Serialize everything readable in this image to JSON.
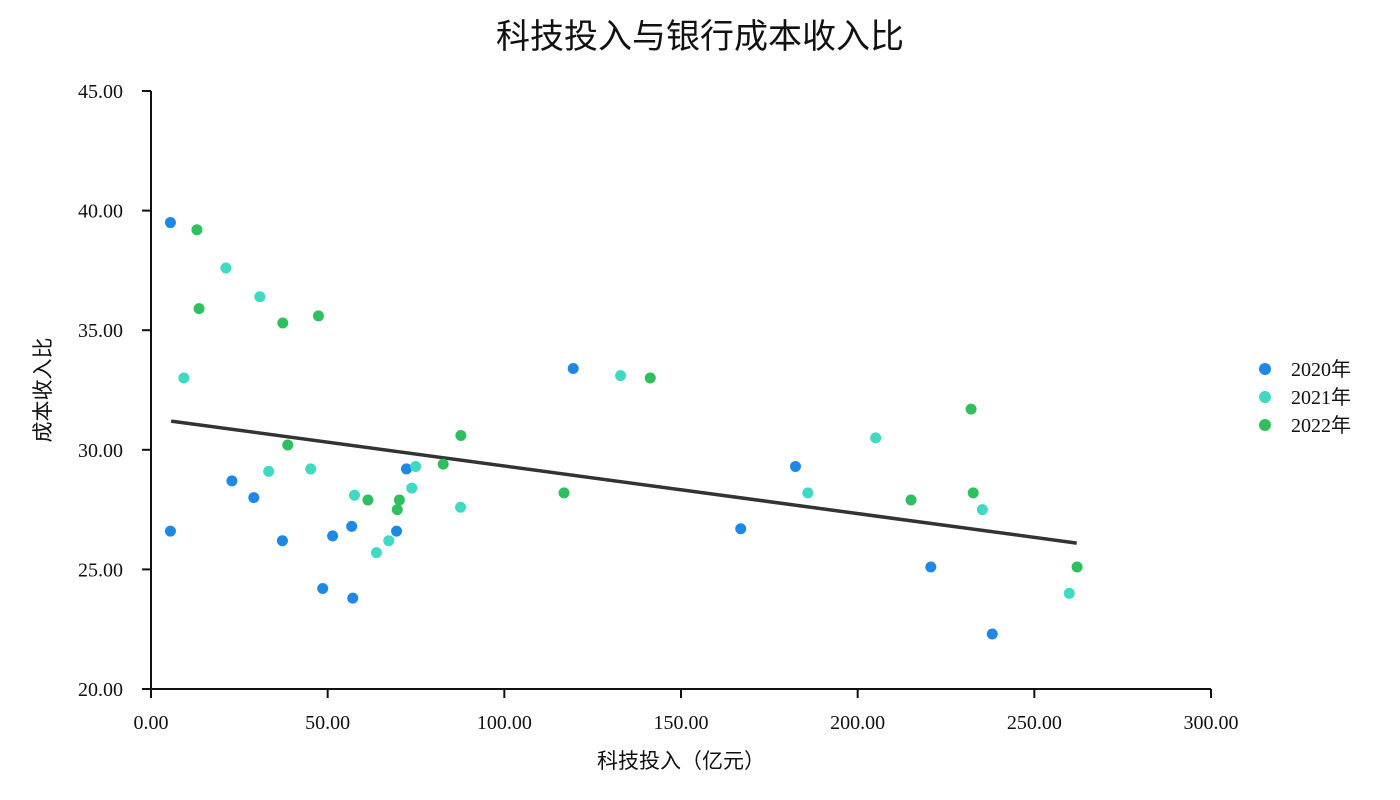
{
  "chart_data": {
    "type": "scatter",
    "title": "科技投入与银行成本收入比",
    "xlabel": "科技投入（亿元）",
    "ylabel": "成本收入比",
    "xlim": [
      0,
      300
    ],
    "ylim": [
      20,
      45
    ],
    "x_ticks": [
      "0.00",
      "50.00",
      "100.00",
      "150.00",
      "200.00",
      "250.00",
      "300.00"
    ],
    "y_ticks": [
      "20.00",
      "25.00",
      "30.00",
      "35.00",
      "40.00",
      "45.00"
    ],
    "x_tick_values": [
      0,
      50,
      100,
      150,
      200,
      250,
      300
    ],
    "y_tick_values": [
      20,
      25,
      30,
      35,
      40,
      45
    ],
    "grid": false,
    "legend_position": "right",
    "series": [
      {
        "name": "2020年",
        "color": "#1f88e5",
        "points": [
          [
            5.5,
            39.5
          ],
          [
            5.5,
            26.6
          ],
          [
            22.9,
            28.7
          ],
          [
            29.1,
            28.0
          ],
          [
            37.2,
            26.2
          ],
          [
            48.6,
            24.2
          ],
          [
            51.4,
            26.4
          ],
          [
            56.8,
            26.8
          ],
          [
            57.1,
            23.8
          ],
          [
            69.5,
            26.6
          ],
          [
            72.3,
            29.2
          ],
          [
            119.5,
            33.4
          ],
          [
            166.9,
            26.7
          ],
          [
            182.4,
            29.3
          ],
          [
            220.7,
            25.1
          ],
          [
            238.1,
            22.3
          ]
        ]
      },
      {
        "name": "2021年",
        "color": "#3fd9c4",
        "points": [
          [
            9.3,
            33.0
          ],
          [
            21.2,
            37.6
          ],
          [
            30.8,
            36.4
          ],
          [
            33.3,
            29.1
          ],
          [
            45.2,
            29.2
          ],
          [
            57.6,
            28.1
          ],
          [
            63.8,
            25.7
          ],
          [
            67.3,
            26.2
          ],
          [
            73.8,
            28.4
          ],
          [
            74.9,
            29.3
          ],
          [
            87.6,
            27.6
          ],
          [
            132.9,
            33.1
          ],
          [
            185.9,
            28.2
          ],
          [
            205.1,
            30.5
          ],
          [
            235.3,
            27.5
          ],
          [
            259.9,
            24.0
          ]
        ]
      },
      {
        "name": "2022年",
        "color": "#2fbf5e",
        "points": [
          [
            13.0,
            39.2
          ],
          [
            13.6,
            35.9
          ],
          [
            37.3,
            35.3
          ],
          [
            38.7,
            30.2
          ],
          [
            47.4,
            35.6
          ],
          [
            61.4,
            27.9
          ],
          [
            69.7,
            27.5
          ],
          [
            70.3,
            27.9
          ],
          [
            82.7,
            29.4
          ],
          [
            87.7,
            30.6
          ],
          [
            116.9,
            28.2
          ],
          [
            141.3,
            33.0
          ],
          [
            215.1,
            27.9
          ],
          [
            232.1,
            31.7
          ],
          [
            232.7,
            28.2
          ],
          [
            262.1,
            25.1
          ]
        ]
      }
    ],
    "trendline": {
      "color": "#333333",
      "points": [
        [
          5.7,
          31.2
        ],
        [
          262.0,
          26.1
        ]
      ]
    }
  }
}
